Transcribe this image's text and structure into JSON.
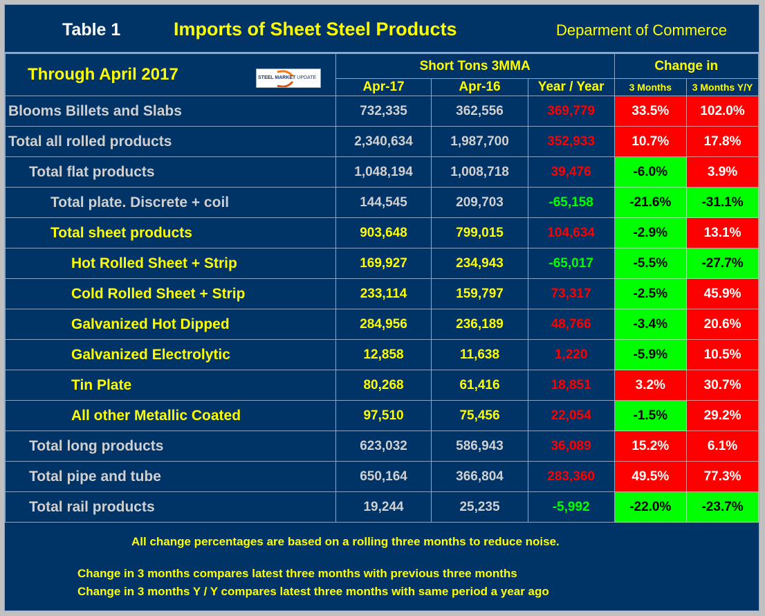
{
  "title": {
    "table_label": "Table 1",
    "main_title": "Imports of Sheet Steel Products",
    "source": "Deparment of Commerce"
  },
  "header": {
    "through": "Through April 2017",
    "logo": {
      "word1": "STEEL",
      "word2": "MARKET",
      "word3": "UPDATE"
    },
    "group_tons": "Short Tons 3MMA",
    "group_change": "Change in",
    "columns": [
      "Apr-17",
      "Apr-16",
      "Year / Year",
      "3 Months",
      "3 Months Y/Y"
    ]
  },
  "colors": {
    "background": "#003366",
    "increase": "#ff0000",
    "decrease": "#00ff00",
    "title_accent": "#ffff00"
  },
  "rows": [
    {
      "label": "Blooms Billets and Slabs",
      "level": 0,
      "style": "gray",
      "apr17": "732,335",
      "apr16": "362,556",
      "yoy": "369,779",
      "yoy_dir": "up",
      "m3": "33.5%",
      "m3_dir": "up",
      "m3yy": "102.0%",
      "m3yy_dir": "up"
    },
    {
      "label": "Total all rolled products",
      "level": 0,
      "style": "gray",
      "apr17": "2,340,634",
      "apr16": "1,987,700",
      "yoy": "352,933",
      "yoy_dir": "up",
      "m3": "10.7%",
      "m3_dir": "up",
      "m3yy": "17.8%",
      "m3yy_dir": "up"
    },
    {
      "label": "Total flat products",
      "level": 1,
      "style": "gray",
      "apr17": "1,048,194",
      "apr16": "1,008,718",
      "yoy": "39,476",
      "yoy_dir": "up",
      "m3": "-6.0%",
      "m3_dir": "down",
      "m3yy": "3.9%",
      "m3yy_dir": "up"
    },
    {
      "label": "Total plate. Discrete + coil",
      "level": 2,
      "style": "gray",
      "apr17": "144,545",
      "apr16": "209,703",
      "yoy": "-65,158",
      "yoy_dir": "down",
      "m3": "-21.6%",
      "m3_dir": "down",
      "m3yy": "-31.1%",
      "m3yy_dir": "down"
    },
    {
      "label": "Total sheet products",
      "level": 2,
      "style": "yellow",
      "apr17": "903,648",
      "apr16": "799,015",
      "yoy": "104,634",
      "yoy_dir": "up",
      "m3": "-2.9%",
      "m3_dir": "down",
      "m3yy": "13.1%",
      "m3yy_dir": "up"
    },
    {
      "label": "Hot Rolled Sheet + Strip",
      "level": 3,
      "style": "yellow",
      "apr17": "169,927",
      "apr16": "234,943",
      "yoy": "-65,017",
      "yoy_dir": "down",
      "m3": "-5.5%",
      "m3_dir": "down",
      "m3yy": "-27.7%",
      "m3yy_dir": "down"
    },
    {
      "label": "Cold Rolled Sheet + Strip",
      "level": 3,
      "style": "yellow",
      "apr17": "233,114",
      "apr16": "159,797",
      "yoy": "73,317",
      "yoy_dir": "up",
      "m3": "-2.5%",
      "m3_dir": "down",
      "m3yy": "45.9%",
      "m3yy_dir": "up"
    },
    {
      "label": "Galvanized Hot Dipped",
      "level": 3,
      "style": "yellow",
      "apr17": "284,956",
      "apr16": "236,189",
      "yoy": "48,766",
      "yoy_dir": "up",
      "m3": "-3.4%",
      "m3_dir": "down",
      "m3yy": "20.6%",
      "m3yy_dir": "up"
    },
    {
      "label": "Galvanized Electrolytic",
      "level": 3,
      "style": "yellow",
      "apr17": "12,858",
      "apr16": "11,638",
      "yoy": "1,220",
      "yoy_dir": "up",
      "m3": "-5.9%",
      "m3_dir": "down",
      "m3yy": "10.5%",
      "m3yy_dir": "up"
    },
    {
      "label": "Tin Plate",
      "level": 3,
      "style": "yellow",
      "apr17": "80,268",
      "apr16": "61,416",
      "yoy": "18,851",
      "yoy_dir": "up",
      "m3": "3.2%",
      "m3_dir": "up",
      "m3yy": "30.7%",
      "m3yy_dir": "up"
    },
    {
      "label": "All other Metallic Coated",
      "level": 3,
      "style": "yellow",
      "apr17": "97,510",
      "apr16": "75,456",
      "yoy": "22,054",
      "yoy_dir": "up",
      "m3": "-1.5%",
      "m3_dir": "down",
      "m3yy": "29.2%",
      "m3yy_dir": "up"
    },
    {
      "label": "Total long products",
      "level": 1,
      "style": "gray",
      "apr17": "623,032",
      "apr16": "586,943",
      "yoy": "36,089",
      "yoy_dir": "up",
      "m3": "15.2%",
      "m3_dir": "up",
      "m3yy": "6.1%",
      "m3yy_dir": "up"
    },
    {
      "label": "Total pipe and tube",
      "level": 1,
      "style": "gray",
      "apr17": "650,164",
      "apr16": "366,804",
      "yoy": "283,360",
      "yoy_dir": "up",
      "m3": "49.5%",
      "m3_dir": "up",
      "m3yy": "77.3%",
      "m3yy_dir": "up"
    },
    {
      "label": "Total rail products",
      "level": 1,
      "style": "gray",
      "apr17": "19,244",
      "apr16": "25,235",
      "yoy": "-5,992",
      "yoy_dir": "down",
      "m3": "-22.0%",
      "m3_dir": "down",
      "m3yy": "-23.7%",
      "m3yy_dir": "down"
    }
  ],
  "notes": [
    "All change percentages are based on a rolling three months to reduce noise.",
    "Change in 3 months compares latest three months with previous three months",
    "Change in 3 months  Y / Y compares latest three months with same period a year ago"
  ]
}
